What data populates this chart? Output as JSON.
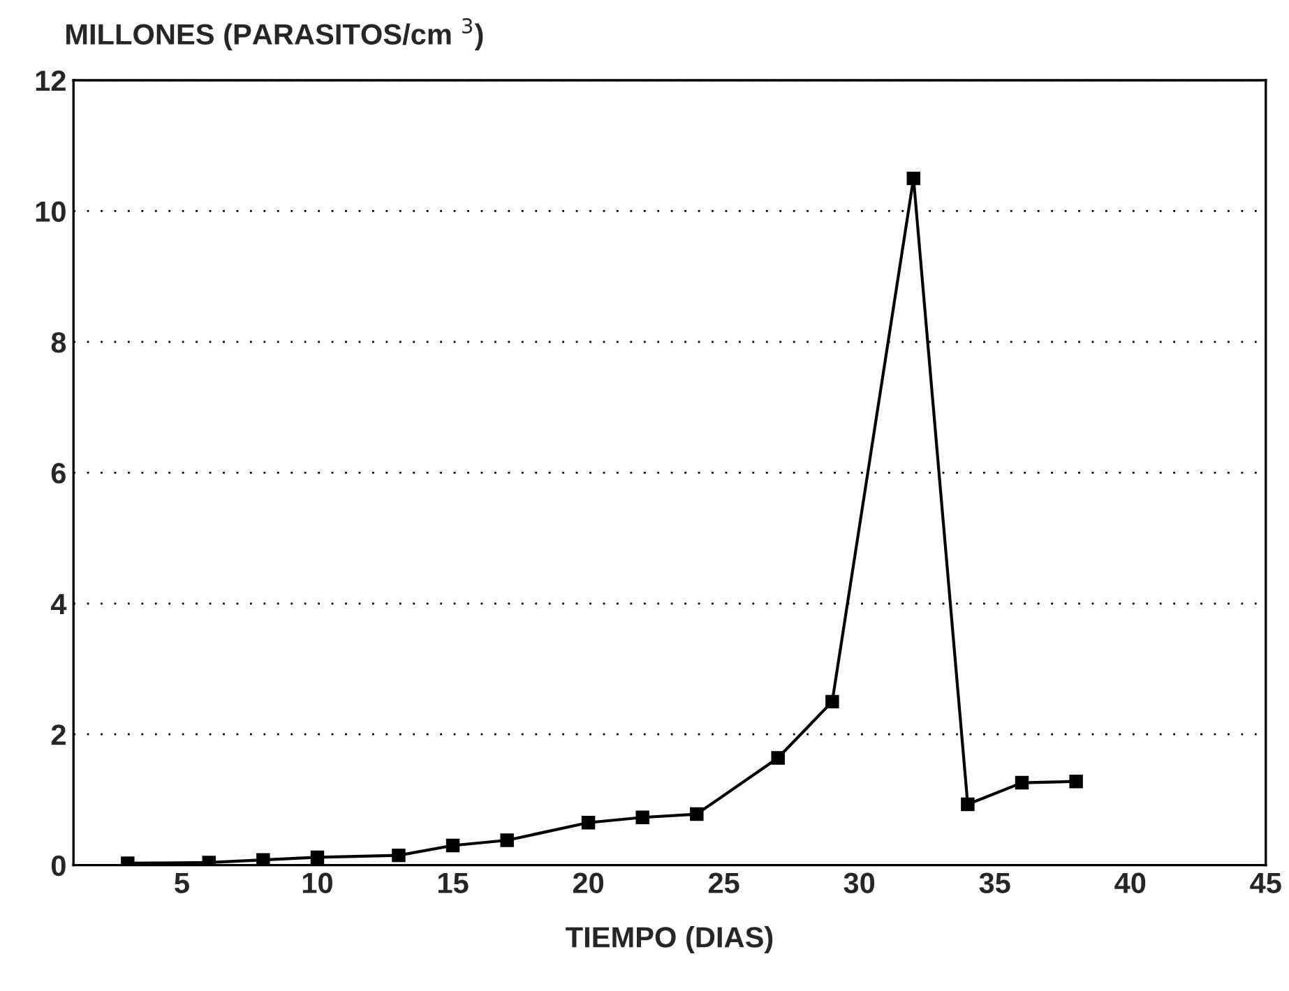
{
  "chart_data": {
    "type": "line",
    "ylabel": "MILLONES (PARASITOS/cm $^{3}$)",
    "xlabel": "TIEMPO (DIAS)",
    "x": [
      3,
      6,
      8,
      10,
      13,
      15,
      17,
      20,
      22,
      24,
      27,
      29,
      32,
      34,
      36,
      38
    ],
    "series": [
      {
        "color": "#000000",
        "values": [
          0.03,
          0.04,
          0.08,
          0.12,
          0.15,
          0.3,
          0.38,
          0.65,
          0.73,
          0.78,
          1.64,
          2.5,
          10.5,
          0.93,
          1.26,
          1.28
        ]
      }
    ],
    "xlim": [
      1,
      45
    ],
    "xticks": [
      5,
      10,
      15,
      20,
      25,
      30,
      35,
      40,
      45
    ],
    "ylim": [
      0,
      12
    ],
    "yticks": [
      0,
      2,
      4,
      6,
      8,
      10,
      12
    ],
    "grid": "y",
    "marker": "square",
    "line_style": "solid"
  }
}
